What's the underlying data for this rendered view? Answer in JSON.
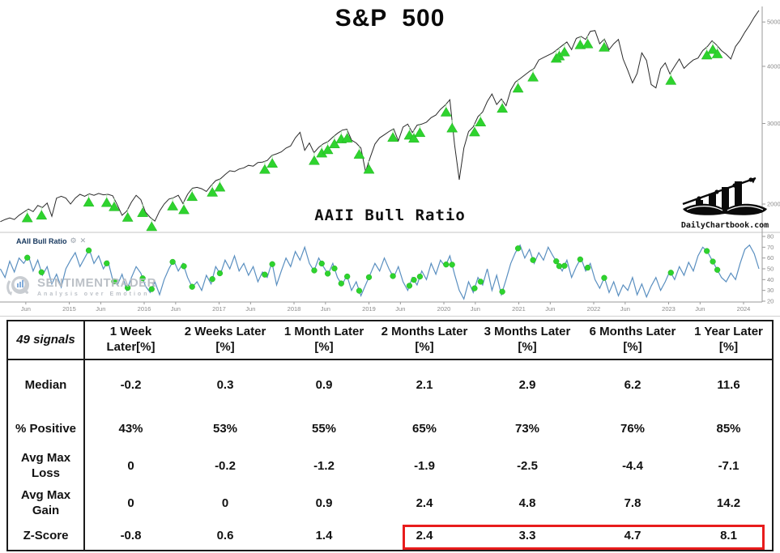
{
  "top_chart": {
    "title": "S&P  500"
  },
  "mid_chart": {
    "title": "AAII Bull Ratio",
    "legend_label": "AAII Bull Ratio",
    "gear_icon": "⚙",
    "close_icon": "✕"
  },
  "logo": {
    "text": "DailyChartbook.com"
  },
  "watermark": {
    "brand": "SENTIMENTRADER",
    "tagline": "Analysis over Emotion"
  },
  "colors": {
    "price_line": "#2b2b2b",
    "signal_green": "#2ed32e",
    "signal_green_dark": "#21b321",
    "aaii_line": "#5a8fc0",
    "highlight_red": "#e81c1c",
    "axis_gray": "#9a9a9a",
    "tick_text": "#8a8a8a"
  },
  "table": {
    "corner": "49 signals",
    "columns": [
      "1 Week Later[%]",
      "2 Weeks Later [%]",
      "1 Month Later [%]",
      "2 Months Later [%]",
      "3 Months Later [%]",
      "6 Months Later [%]",
      "1 Year Later [%]"
    ],
    "rows": [
      {
        "label": "Median",
        "values": [
          "-0.2",
          "0.3",
          "0.9",
          "2.1",
          "2.9",
          "6.2",
          "11.6"
        ]
      },
      {
        "label": "% Positive",
        "values": [
          "43%",
          "53%",
          "55%",
          "65%",
          "73%",
          "76%",
          "85%"
        ]
      },
      {
        "label": "Avg Max Loss",
        "values": [
          "0",
          "-0.2",
          "-1.2",
          "-1.9",
          "-2.5",
          "-4.4",
          "-7.1"
        ]
      },
      {
        "label": "Avg Max Gain",
        "values": [
          "0",
          "0",
          "0.9",
          "2.4",
          "4.8",
          "7.8",
          "14.2"
        ]
      },
      {
        "label": "Z-Score",
        "values": [
          "-0.8",
          "0.6",
          "1.4",
          "2.4",
          "3.3",
          "4.7",
          "8.1"
        ]
      }
    ],
    "highlight": {
      "row": "Z-Score",
      "highlighted_values": [
        "2.4",
        "3.3",
        "4.7",
        "8.1"
      ]
    }
  },
  "chart_data": [
    {
      "type": "line",
      "name": "S&P 500",
      "y_scale": "log",
      "y_ticks": [
        2000,
        3000,
        4000,
        5000
      ],
      "ylim": [
        1800,
        5400
      ],
      "x_start": 2014.08,
      "x_step": 0.0625,
      "legend_position": "none",
      "grid": false,
      "signal_marker": "green-up-triangle",
      "signal_years": [
        2014.44,
        2014.63,
        2015.26,
        2015.5,
        2015.6,
        2015.78,
        2015.98,
        2016.1,
        2016.38,
        2016.53,
        2016.64,
        2016.91,
        2017.01,
        2017.61,
        2017.71,
        2018.27,
        2018.37,
        2018.45,
        2018.54,
        2018.63,
        2018.71,
        2018.87,
        2019.0,
        2019.32,
        2019.54,
        2019.6,
        2019.68,
        2020.03,
        2020.11,
        2020.41,
        2020.49,
        2020.78,
        2020.99,
        2021.19,
        2021.5,
        2021.54,
        2021.61,
        2021.82,
        2021.92,
        2022.14,
        2023.03,
        2023.51,
        2023.59,
        2023.65
      ],
      "values": [
        1830,
        1850,
        1865,
        1850,
        1890,
        1920,
        1950,
        1925,
        1985,
        1965,
        2010,
        1880,
        2060,
        2080,
        2060,
        2000,
        2060,
        2100,
        2080,
        2105,
        2090,
        2110,
        2095,
        2100,
        2085,
        1990,
        1890,
        1930,
        2020,
        2090,
        2045,
        1920,
        1870,
        1835,
        1930,
        2000,
        2050,
        2065,
        2090,
        2005,
        2100,
        2165,
        2175,
        2160,
        2130,
        2195,
        2250,
        2270,
        2320,
        2365,
        2355,
        2385,
        2400,
        2430,
        2420,
        2465,
        2470,
        2490,
        2555,
        2575,
        2600,
        2650,
        2680,
        2790,
        2870,
        2620,
        2720,
        2590,
        2660,
        2710,
        2740,
        2800,
        2855,
        2900,
        2915,
        2760,
        2720,
        2650,
        2355,
        2530,
        2705,
        2790,
        2835,
        2880,
        2920,
        2750,
        2945,
        2990,
        2865,
        2975,
        2990,
        3020,
        3090,
        3130,
        3220,
        3290,
        3380,
        2700,
        2260,
        2650,
        2880,
        2950,
        3105,
        3180,
        3350,
        3480,
        3300,
        3395,
        3280,
        3550,
        3695,
        3760,
        3830,
        3900,
        3960,
        4130,
        4180,
        4230,
        4280,
        4360,
        4440,
        4520,
        4350,
        4605,
        4650,
        4580,
        4770,
        4790,
        4480,
        4590,
        4350,
        4480,
        4580,
        4150,
        3920,
        3680,
        3860,
        4280,
        4120,
        3650,
        3590,
        3950,
        4070,
        3850,
        4000,
        4150,
        3960,
        4050,
        4130,
        4170,
        4330,
        4420,
        4550,
        4450,
        4330,
        4250,
        4150,
        4420,
        4560,
        4750,
        4920,
        5120,
        5300
      ]
    },
    {
      "type": "line",
      "name": "AAII Bull Ratio",
      "y_scale": "linear",
      "y_ticks": [
        20,
        30,
        40,
        50,
        60,
        70,
        80
      ],
      "ylim": [
        20,
        80
      ],
      "x_start": 2014.08,
      "x_step": 0.0625,
      "grid": false,
      "signal_marker": "green-dot",
      "x_ticks": [
        {
          "label": "Jun",
          "year": 2014.42
        },
        {
          "label": "2015",
          "year": 2015
        },
        {
          "label": "Jun",
          "year": 2015.42
        },
        {
          "label": "2016",
          "year": 2016
        },
        {
          "label": "Jun",
          "year": 2016.42
        },
        {
          "label": "2017",
          "year": 2017
        },
        {
          "label": "Jun",
          "year": 2017.42
        },
        {
          "label": "2018",
          "year": 2018
        },
        {
          "label": "Jun",
          "year": 2018.42
        },
        {
          "label": "2019",
          "year": 2019
        },
        {
          "label": "Jun",
          "year": 2019.42
        },
        {
          "label": "2020",
          "year": 2020
        },
        {
          "label": "Jun",
          "year": 2020.42
        },
        {
          "label": "2021",
          "year": 2021
        },
        {
          "label": "Jun",
          "year": 2021.42
        },
        {
          "label": "2022",
          "year": 2022
        },
        {
          "label": "Jun",
          "year": 2022.42
        },
        {
          "label": "2023",
          "year": 2023
        },
        {
          "label": "Jun",
          "year": 2023.42
        },
        {
          "label": "2024",
          "year": 2024
        }
      ],
      "values": [
        50,
        42,
        57,
        47,
        60,
        55,
        62,
        48,
        58,
        44,
        52,
        36,
        45,
        33,
        50,
        58,
        65,
        52,
        60,
        68,
        55,
        62,
        50,
        57,
        40,
        35,
        45,
        30,
        42,
        52,
        46,
        34,
        28,
        38,
        26,
        40,
        50,
        58,
        48,
        55,
        42,
        33,
        38,
        30,
        44,
        36,
        52,
        45,
        58,
        50,
        62,
        48,
        55,
        44,
        52,
        38,
        47,
        42,
        56,
        35,
        48,
        60,
        52,
        66,
        58,
        70,
        55,
        48,
        60,
        52,
        45,
        55,
        42,
        35,
        44,
        30,
        38,
        25,
        35,
        45,
        55,
        48,
        60,
        50,
        42,
        52,
        38,
        30,
        42,
        35,
        48,
        40,
        55,
        45,
        58,
        52,
        62,
        45,
        30,
        22,
        38,
        28,
        42,
        35,
        50,
        30,
        44,
        26,
        40,
        55,
        65,
        72,
        60,
        68,
        55,
        65,
        58,
        70,
        62,
        55,
        48,
        58,
        42,
        52,
        60,
        48,
        55,
        40,
        32,
        42,
        28,
        38,
        25,
        35,
        30,
        42,
        26,
        36,
        24,
        34,
        42,
        30,
        38,
        48,
        40,
        52,
        44,
        56,
        48,
        62,
        70,
        66,
        58,
        50,
        42,
        38,
        46,
        40,
        55,
        68,
        72,
        64,
        50
      ]
    }
  ]
}
